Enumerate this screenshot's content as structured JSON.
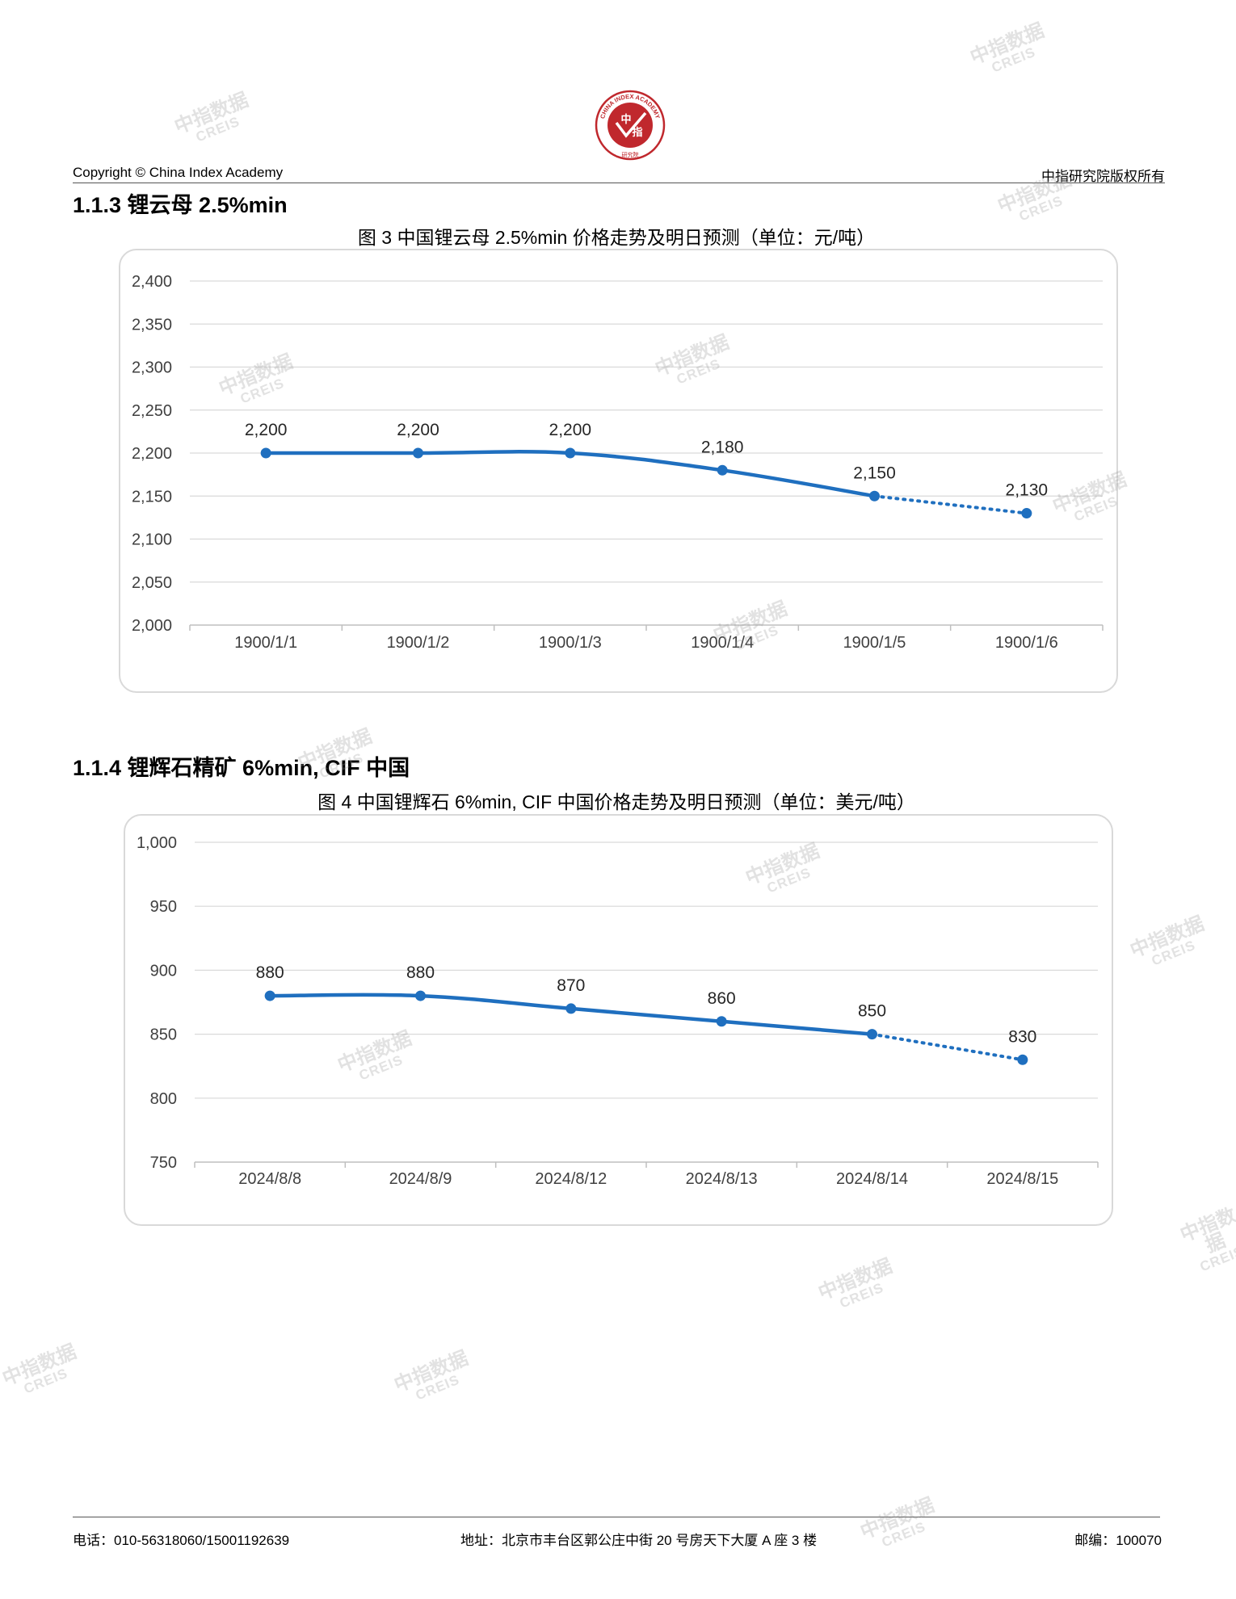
{
  "header": {
    "copyright": "Copyright © China Index Academy",
    "rights": "中指研究院版权所有",
    "logo": {
      "ring_text": "CHINA INDEX ACADEMY",
      "center_text_top": "中",
      "center_text_bottom": "指",
      "bottom_text": "研究院",
      "color": "#c0282d"
    }
  },
  "sections": [
    {
      "title": "1.1.3 锂云母 2.5%min",
      "chart_title": "图 3 中国锂云母 2.5%min 价格走势及明日预测（单位：元/吨）"
    },
    {
      "title": "1.1.4 锂辉石精矿 6%min, CIF 中国",
      "chart_title": "图 4 中国锂辉石 6%min, CIF 中国价格走势及明日预测（单位：美元/吨）"
    }
  ],
  "chart_data": [
    {
      "type": "line",
      "title": "图 3 中国锂云母 2.5%min 价格走势及明日预测（单位：元/吨）",
      "categories": [
        "1900/1/1",
        "1900/1/2",
        "1900/1/3",
        "1900/1/4",
        "1900/1/5",
        "1900/1/6"
      ],
      "values": [
        2200,
        2200,
        2200,
        2180,
        2150,
        2130
      ],
      "value_labels": [
        "2,200",
        "2,200",
        "2,200",
        "2,180",
        "2,150",
        "2,130"
      ],
      "forecast_from_index": 4,
      "ylim": [
        2000,
        2400
      ],
      "yticks": [
        2000,
        2050,
        2100,
        2150,
        2200,
        2250,
        2300,
        2350,
        2400
      ],
      "ytick_labels": [
        "2,000",
        "2,050",
        "2,100",
        "2,150",
        "2,200",
        "2,250",
        "2,300",
        "2,350",
        "2,400"
      ],
      "grid": true,
      "smooth": true,
      "color": "#1f6fbf",
      "gridline_color": "#d9d9d9"
    },
    {
      "type": "line",
      "title": "图 4 中国锂辉石 6%min, CIF 中国价格走势及明日预测（单位：美元/吨）",
      "categories": [
        "2024/8/8",
        "2024/8/9",
        "2024/8/12",
        "2024/8/13",
        "2024/8/14",
        "2024/8/15"
      ],
      "values": [
        880,
        880,
        870,
        860,
        850,
        830
      ],
      "value_labels": [
        "880",
        "880",
        "870",
        "860",
        "850",
        "830"
      ],
      "forecast_from_index": 4,
      "ylim": [
        750,
        1000
      ],
      "yticks": [
        750,
        800,
        850,
        900,
        950,
        1000
      ],
      "ytick_labels": [
        "750",
        "800",
        "850",
        "900",
        "950",
        "1,000"
      ],
      "grid": true,
      "smooth": true,
      "color": "#1f6fbf",
      "gridline_color": "#d9d9d9"
    }
  ],
  "watermark": {
    "line1": "中指数据",
    "line2": "CREIS"
  },
  "footer": {
    "phone": "电话：010-56318060/15001192639",
    "address": "地址：北京市丰台区郭公庄中街 20 号房天下大厦 A 座 3 楼",
    "postcode": "邮编：100070"
  }
}
